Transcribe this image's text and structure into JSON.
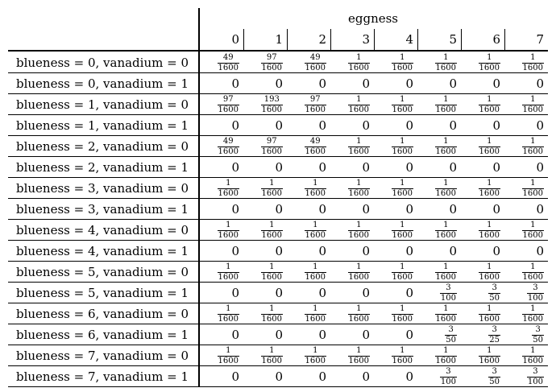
{
  "table": {
    "column_group_title": "eggness",
    "columns": [
      "0",
      "1",
      "2",
      "3",
      "4",
      "5",
      "6",
      "7"
    ],
    "rows": [
      {
        "label": "blueness = 0, vanadium = 0",
        "cells": [
          "49/1600",
          "97/1600",
          "49/1600",
          "1/1600",
          "1/1600",
          "1/1600",
          "1/1600",
          "1/1600"
        ]
      },
      {
        "label": "blueness = 0, vanadium = 1",
        "cells": [
          "0",
          "0",
          "0",
          "0",
          "0",
          "0",
          "0",
          "0"
        ]
      },
      {
        "label": "blueness = 1, vanadium = 0",
        "cells": [
          "97/1600",
          "193/1600",
          "97/1600",
          "1/1600",
          "1/1600",
          "1/1600",
          "1/1600",
          "1/1600"
        ]
      },
      {
        "label": "blueness = 1, vanadium = 1",
        "cells": [
          "0",
          "0",
          "0",
          "0",
          "0",
          "0",
          "0",
          "0"
        ]
      },
      {
        "label": "blueness = 2, vanadium = 0",
        "cells": [
          "49/1600",
          "97/1600",
          "49/1600",
          "1/1600",
          "1/1600",
          "1/1600",
          "1/1600",
          "1/1600"
        ]
      },
      {
        "label": "blueness = 2, vanadium = 1",
        "cells": [
          "0",
          "0",
          "0",
          "0",
          "0",
          "0",
          "0",
          "0"
        ]
      },
      {
        "label": "blueness = 3, vanadium = 0",
        "cells": [
          "1/1600",
          "1/1600",
          "1/1600",
          "1/1600",
          "1/1600",
          "1/1600",
          "1/1600",
          "1/1600"
        ]
      },
      {
        "label": "blueness = 3, vanadium = 1",
        "cells": [
          "0",
          "0",
          "0",
          "0",
          "0",
          "0",
          "0",
          "0"
        ]
      },
      {
        "label": "blueness = 4, vanadium = 0",
        "cells": [
          "1/1600",
          "1/1600",
          "1/1600",
          "1/1600",
          "1/1600",
          "1/1600",
          "1/1600",
          "1/1600"
        ]
      },
      {
        "label": "blueness = 4, vanadium = 1",
        "cells": [
          "0",
          "0",
          "0",
          "0",
          "0",
          "0",
          "0",
          "0"
        ]
      },
      {
        "label": "blueness = 5, vanadium = 0",
        "cells": [
          "1/1600",
          "1/1600",
          "1/1600",
          "1/1600",
          "1/1600",
          "1/1600",
          "1/1600",
          "1/1600"
        ]
      },
      {
        "label": "blueness = 5, vanadium = 1",
        "cells": [
          "0",
          "0",
          "0",
          "0",
          "0",
          "3/100",
          "3/50",
          "3/100"
        ]
      },
      {
        "label": "blueness = 6, vanadium = 0",
        "cells": [
          "1/1600",
          "1/1600",
          "1/1600",
          "1/1600",
          "1/1600",
          "1/1600",
          "1/1600",
          "1/1600"
        ]
      },
      {
        "label": "blueness = 6, vanadium = 1",
        "cells": [
          "0",
          "0",
          "0",
          "0",
          "0",
          "3/50",
          "3/25",
          "3/50"
        ]
      },
      {
        "label": "blueness = 7, vanadium = 0",
        "cells": [
          "1/1600",
          "1/1600",
          "1/1600",
          "1/1600",
          "1/1600",
          "1/1600",
          "1/1600",
          "1/1600"
        ]
      },
      {
        "label": "blueness = 7, vanadium = 1",
        "cells": [
          "0",
          "0",
          "0",
          "0",
          "0",
          "3/100",
          "3/50",
          "3/100"
        ]
      }
    ]
  }
}
